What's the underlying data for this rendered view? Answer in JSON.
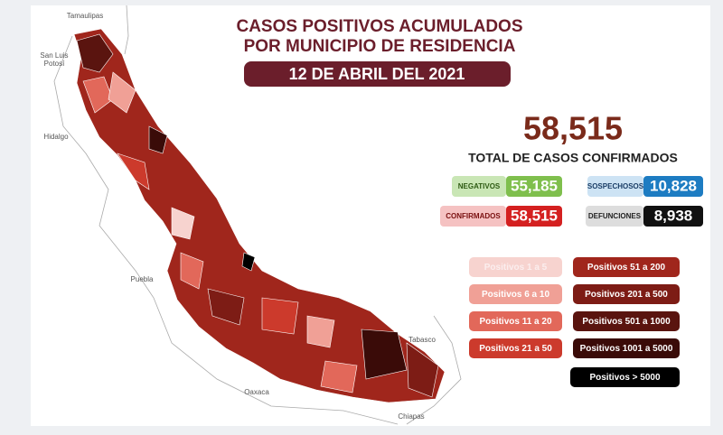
{
  "title": {
    "line1": "CASOS POSITIVOS ACUMULADOS",
    "line2": "POR MUNICIPIO DE RESIDENCIA"
  },
  "date": "12 DE ABRIL DEL 2021",
  "total": {
    "value": "58,515",
    "label": "TOTAL DE CASOS CONFIRMADOS"
  },
  "stats": [
    {
      "label": "NEGATIVOS",
      "value": "55,185"
    },
    {
      "label": "SOSPECHOSOS",
      "value": "10,828"
    },
    {
      "label": "CONFIRMADOS",
      "value": "58,515"
    },
    {
      "label": "DEFUNCIONES",
      "value": "8,938"
    }
  ],
  "legend": [
    {
      "label": "Positivos 1 a 5",
      "color": "#f7d3cf"
    },
    {
      "label": "Positivos 6 a 10",
      "color": "#f0a096"
    },
    {
      "label": "Positivos 11 a 20",
      "color": "#e2685a"
    },
    {
      "label": "Positivos 21 a 50",
      "color": "#cc3a2c"
    },
    {
      "label": "Positivos 51 a 200",
      "color": "#a0261c"
    },
    {
      "label": "Positivos 201 a 500",
      "color": "#7d1c15"
    },
    {
      "label": "Positivos 501 a 1000",
      "color": "#5a140f"
    },
    {
      "label": "Positivos 1001 a 5000",
      "color": "#3a0b08"
    },
    {
      "label": "Positivos > 5000",
      "color": "#000000"
    }
  ],
  "states": [
    "Tamaulipas",
    "San Luis",
    "Potosí",
    "Hidalgo",
    "Puebla",
    "Oaxaca",
    "Tabasco",
    "Chiapas"
  ]
}
